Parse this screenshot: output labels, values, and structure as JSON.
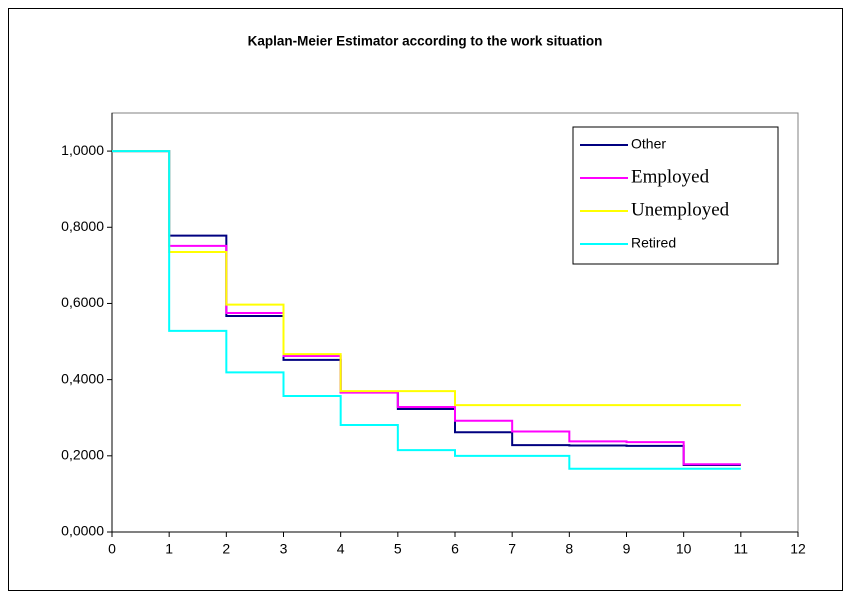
{
  "chart_data": {
    "type": "line",
    "step": "after",
    "title": "Kaplan-Meier Estimator according to the work situation",
    "x": [
      0,
      1,
      2,
      3,
      4,
      5,
      6,
      7,
      8,
      9,
      10,
      11
    ],
    "series": [
      {
        "name": "Other",
        "color": "#000080",
        "values": [
          1.0,
          0.778,
          0.567,
          0.452,
          0.367,
          0.323,
          0.262,
          0.228,
          0.227,
          0.226,
          0.176,
          0.176
        ]
      },
      {
        "name": "Employed",
        "color": "#ff00ff",
        "values": [
          1.0,
          0.751,
          0.575,
          0.462,
          0.366,
          0.328,
          0.292,
          0.264,
          0.238,
          0.236,
          0.178,
          0.178
        ]
      },
      {
        "name": "Unemployed",
        "color": "#ffff00",
        "values": [
          1.0,
          0.735,
          0.597,
          0.467,
          0.37,
          0.37,
          0.333,
          0.333,
          0.333,
          0.333,
          0.333,
          0.333
        ]
      },
      {
        "name": "Retired",
        "color": "#00ffff",
        "values": [
          1.0,
          0.528,
          0.419,
          0.357,
          0.281,
          0.215,
          0.2,
          0.2,
          0.166,
          0.166,
          0.166,
          0.166
        ]
      }
    ],
    "xlim": [
      0,
      12
    ],
    "xticks": [
      0,
      1,
      2,
      3,
      4,
      5,
      6,
      7,
      8,
      9,
      10,
      11,
      12
    ],
    "ylim": [
      0,
      1.1
    ],
    "yticks": [
      {
        "value": 0,
        "label": "0,0000"
      },
      {
        "value": 0.2,
        "label": "0,2000"
      },
      {
        "value": 0.4,
        "label": "0,4000"
      },
      {
        "value": 0.6,
        "label": "0,6000"
      },
      {
        "value": 0.8,
        "label": "0,8000"
      },
      {
        "value": 1.0,
        "label": "1,0000"
      }
    ],
    "grid": false,
    "legend": "upper right"
  }
}
